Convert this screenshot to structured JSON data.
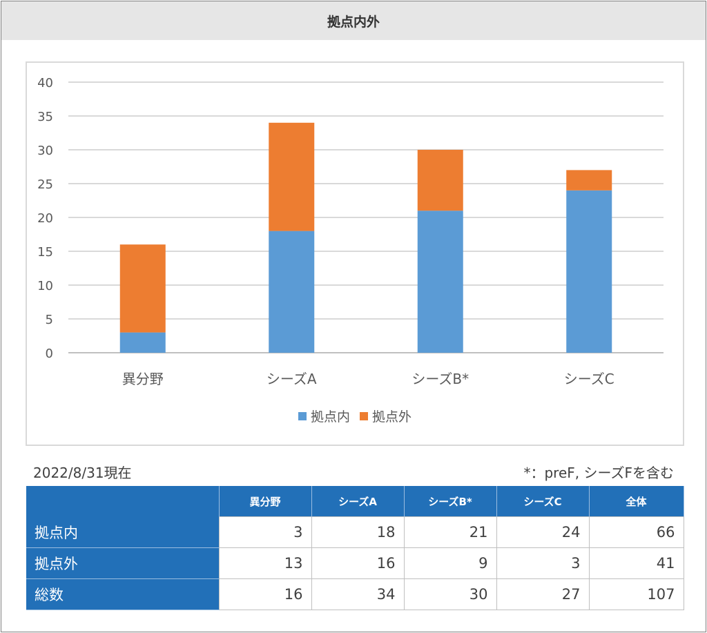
{
  "title": "拠点内外",
  "chart_data": {
    "type": "bar",
    "stacked": true,
    "categories": [
      "異分野",
      "シーズA",
      "シーズB*",
      "シーズC"
    ],
    "series": [
      {
        "name": "拠点内",
        "values": [
          3,
          18,
          21,
          24
        ],
        "color": "#5b9bd5"
      },
      {
        "name": "拠点外",
        "values": [
          13,
          16,
          9,
          3
        ],
        "color": "#ed7d31"
      }
    ],
    "ylim": [
      0,
      40
    ],
    "yticks": [
      0,
      5,
      10,
      15,
      20,
      25,
      30,
      35,
      40
    ],
    "grid": true,
    "legend_position": "bottom"
  },
  "as_of": "2022/8/31現在",
  "footnote": "*：preF, シーズFを含む",
  "table": {
    "headers": [
      "",
      "異分野",
      "シーズA",
      "シーズB*",
      "シーズC",
      "全体"
    ],
    "rows": [
      {
        "label": "拠点内",
        "values": [
          "3",
          "18",
          "21",
          "24",
          "66"
        ]
      },
      {
        "label": "拠点外",
        "values": [
          "13",
          "16",
          "9",
          "3",
          "41"
        ]
      },
      {
        "label": "総数",
        "values": [
          "16",
          "34",
          "30",
          "27",
          "107"
        ]
      }
    ]
  }
}
